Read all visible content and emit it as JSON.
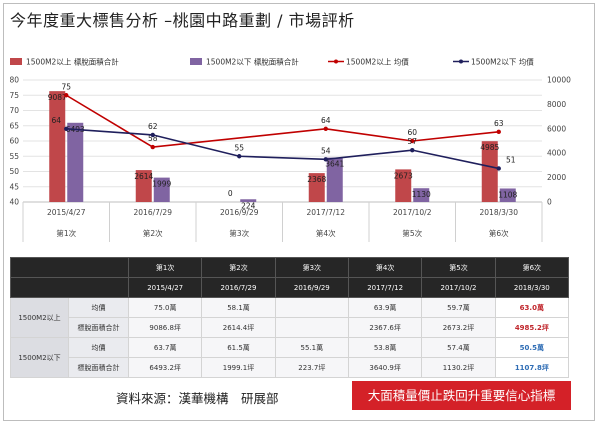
{
  "page": {
    "title": "今年度重大標售分析 –桃園中路重劃 / 市場評析",
    "source": "資料來源：漢華機構　研展部",
    "banner": "大面積量價止跌回升重要信心指標"
  },
  "chart_data": {
    "type": "bar",
    "categories": [
      "2015/4/27",
      "2016/7/29",
      "2016/9/29",
      "2017/7/12",
      "2017/10/2",
      "2018/3/30"
    ],
    "sublabels": [
      "第1次",
      "第2次",
      "第3次",
      "第4次",
      "第5次",
      "第6次"
    ],
    "bar_axis": {
      "side": "right",
      "range": [
        0,
        10000
      ],
      "ticks": [
        0,
        2000,
        4000,
        6000,
        8000,
        10000
      ]
    },
    "line_axis": {
      "side": "left",
      "range": [
        40,
        80
      ],
      "ticks": [
        40,
        45,
        50,
        55,
        60,
        65,
        70,
        75,
        80
      ]
    },
    "series": [
      {
        "name": "1500M2以上 標脫面積合計",
        "kind": "bar",
        "color": "#c0474a",
        "values": [
          9087,
          2614,
          0,
          2368,
          2673,
          4985
        ],
        "labels": [
          "9087",
          "2614",
          "0",
          "2368",
          "2673",
          "4985"
        ]
      },
      {
        "name": "1500M2以下 標脫面積合計",
        "kind": "bar",
        "color": "#8064a2",
        "values": [
          6493,
          1999,
          224,
          3641,
          1130,
          1108
        ],
        "labels": [
          "6493",
          "1999",
          "224",
          "3641",
          "1130",
          "1108"
        ]
      },
      {
        "name": "1500M2以上 均價",
        "kind": "line",
        "color": "#c00000",
        "values": [
          75,
          58,
          null,
          64,
          60,
          63
        ],
        "labels": [
          "75",
          "58",
          "",
          "64",
          "60",
          "63"
        ]
      },
      {
        "name": "1500M2以下 均價",
        "kind": "line",
        "color": "#1f1f5c",
        "values": [
          64,
          62,
          55,
          54,
          57,
          51
        ],
        "labels": [
          "64",
          "62",
          "55",
          "54",
          "57",
          "51"
        ]
      }
    ],
    "grid": true,
    "legend": "top"
  },
  "table": {
    "header1": [
      "第1次",
      "第2次",
      "第3次",
      "第4次",
      "第5次",
      "第6次"
    ],
    "header2": [
      "2015/4/27",
      "2016/7/29",
      "2016/9/29",
      "2017/7/12",
      "2017/10/2",
      "2018/3/30"
    ],
    "groups": [
      {
        "name": "1500M2以上",
        "rows": [
          {
            "metric": "均價",
            "values": [
              "75.0萬",
              "58.1萬",
              "",
              "63.9萬",
              "59.7萬",
              "63.0萬"
            ],
            "accent": "#c0262c"
          },
          {
            "metric": "標脫面積合計",
            "values": [
              "9086.8坪",
              "2614.4坪",
              "",
              "2367.6坪",
              "2673.2坪",
              "4985.2坪"
            ],
            "accent": "#c0262c"
          }
        ]
      },
      {
        "name": "1500M2以下",
        "rows": [
          {
            "metric": "均價",
            "values": [
              "63.7萬",
              "61.5萬",
              "55.1萬",
              "53.8萬",
              "57.4萬",
              "50.5萬"
            ],
            "accent": "#2f6db5"
          },
          {
            "metric": "標脫面積合計",
            "values": [
              "6493.2坪",
              "1999.1坪",
              "223.7坪",
              "3640.9坪",
              "1130.2坪",
              "1107.8坪"
            ],
            "accent": "#2f6db5"
          }
        ]
      }
    ]
  }
}
